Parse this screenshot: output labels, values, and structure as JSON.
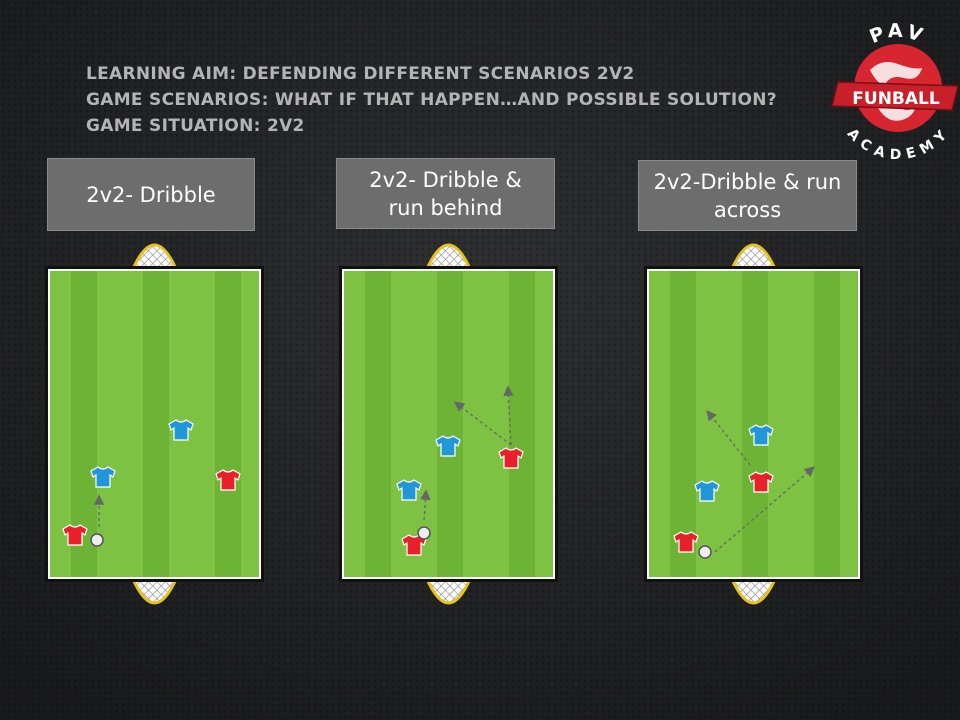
{
  "header": {
    "lines": [
      "LEARNING AIM: DEFENDING DIFFERENT SCENARIOS 2V2",
      "GAME SCENARIOS: WHAT IF THAT HAPPEN…AND POSSIBLE SOLUTION?",
      "GAME SITUATION: 2V2"
    ]
  },
  "logo": {
    "top": "PAV",
    "banner": "FUNBALL",
    "bottom": "ACADEMY"
  },
  "panels": [
    {
      "title": "2v2- Dribble"
    },
    {
      "title": "2v2- Dribble & run behind"
    },
    {
      "title": "2v2-Dribble & run across"
    }
  ]
}
